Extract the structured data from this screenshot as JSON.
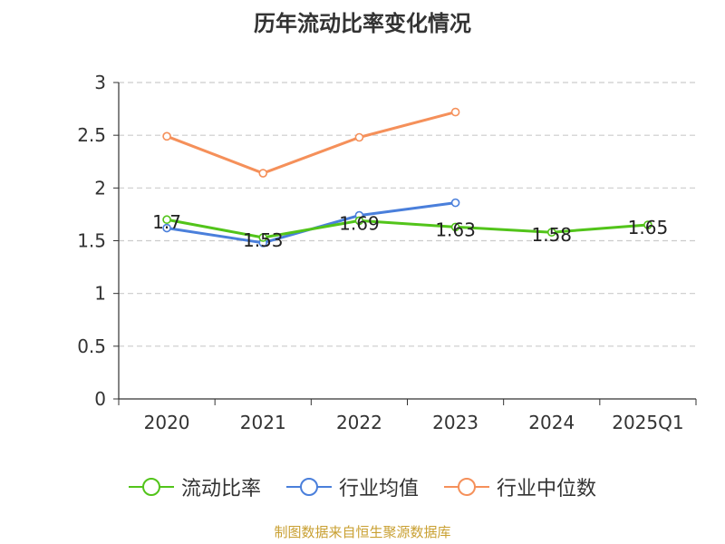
{
  "title": "历年流动比率变化情况",
  "source_text": "制图数据来自恒生聚源数据库",
  "colors": {
    "current_ratio": "#52c41a",
    "industry_avg": "#4a7fdb",
    "industry_median": "#f5905a",
    "axis": "#333333",
    "grid": "#cccccc",
    "source": "#c9a032"
  },
  "chart_data": {
    "type": "line",
    "title": "历年流动比率变化情况",
    "categories": [
      "2020",
      "2021",
      "2022",
      "2023",
      "2024",
      "2025Q1"
    ],
    "ylim": [
      0,
      3
    ],
    "yticks": [
      "0",
      "0.5",
      "1",
      "1.5",
      "2",
      "2.5",
      "3"
    ],
    "grid": "horizontal-dashed",
    "legend_position": "bottom-center",
    "series": [
      {
        "name": "流动比率",
        "key": "current_ratio",
        "values": [
          1.7,
          1.53,
          1.69,
          1.63,
          1.58,
          1.65
        ],
        "labels": [
          "1.7",
          "1.53",
          "1.69",
          "1.63",
          "1.58",
          "1.65"
        ]
      },
      {
        "name": "行业均值",
        "key": "industry_avg",
        "values": [
          1.62,
          1.48,
          1.74,
          1.86,
          null,
          null
        ]
      },
      {
        "name": "行业中位数",
        "key": "industry_median",
        "values": [
          2.49,
          2.14,
          2.48,
          2.72,
          null,
          null
        ]
      }
    ]
  }
}
